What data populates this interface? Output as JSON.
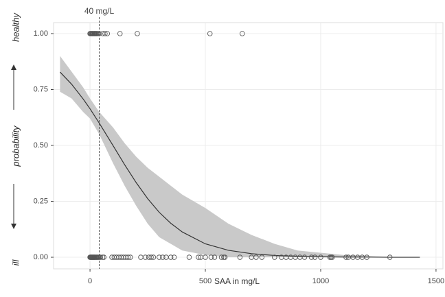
{
  "chart_data": {
    "type": "logistic",
    "x_label": "SAA in mg/L",
    "y_labels": {
      "top": "healthy",
      "middle": "probability",
      "bottom": "ill"
    },
    "threshold": {
      "value": 40,
      "label": "40 mg/L"
    },
    "xlim": [
      -158,
      1530
    ],
    "ylim": [
      -0.052,
      1.049
    ],
    "xticks": [
      0,
      500,
      1000,
      1500
    ],
    "yticks": [
      {
        "value": 0,
        "label": "0.00"
      },
      {
        "value": 0.25,
        "label": "0.25"
      },
      {
        "value": 0.5,
        "label": "0.50"
      },
      {
        "value": 0.75,
        "label": "0.75"
      },
      {
        "value": 1,
        "label": "1.00"
      }
    ],
    "grid": true,
    "fit": {
      "color": "#333333",
      "band_color": "#c9c9c9",
      "x": [
        -130,
        -80,
        -30,
        0,
        40,
        100,
        150,
        200,
        250,
        300,
        350,
        400,
        500,
        600,
        700,
        800,
        900,
        1000,
        1100,
        1200,
        1300,
        1430
      ],
      "y": [
        0.828,
        0.774,
        0.708,
        0.664,
        0.6,
        0.499,
        0.414,
        0.334,
        0.262,
        0.201,
        0.152,
        0.113,
        0.06,
        0.031,
        0.016,
        0.008,
        0.004,
        0.002,
        0.001,
        0.001,
        0,
        0
      ],
      "lower": [
        0.74,
        0.71,
        0.65,
        0.62,
        0.55,
        0.42,
        0.32,
        0.23,
        0.15,
        0.09,
        0.06,
        0.03,
        0.01,
        0,
        0,
        0,
        0,
        0,
        0,
        0,
        0,
        0
      ],
      "upper": [
        0.9,
        0.83,
        0.76,
        0.71,
        0.65,
        0.58,
        0.51,
        0.45,
        0.4,
        0.36,
        0.32,
        0.28,
        0.22,
        0.15,
        0.1,
        0.06,
        0.03,
        0.02,
        0.01,
        0.005,
        0,
        0
      ]
    },
    "groups": [
      {
        "color": "#555555",
        "x": [
          0,
          3,
          5,
          8,
          10,
          12,
          15,
          18,
          20,
          22,
          25,
          28,
          30,
          35,
          40,
          55,
          65,
          75,
          130,
          205,
          520,
          660
        ],
        "y": [
          1,
          1,
          1,
          1,
          1,
          1,
          1,
          1,
          1,
          1,
          1,
          1,
          1,
          1,
          1,
          1,
          1,
          1,
          1,
          1,
          1,
          1
        ]
      },
      {
        "color": "#555555",
        "x": [
          0,
          2,
          4,
          6,
          8,
          10,
          12,
          14,
          16,
          18,
          20,
          22,
          25,
          28,
          30,
          33,
          36,
          40,
          45,
          55,
          60,
          95,
          105,
          115,
          125,
          135,
          145,
          155,
          165,
          175,
          220,
          240,
          255,
          265,
          275,
          300,
          315,
          330,
          350,
          365,
          430,
          470,
          480,
          500,
          525,
          540,
          570,
          580,
          585,
          650,
          700,
          720,
          745,
          800,
          830,
          850,
          870,
          890,
          910,
          930,
          960,
          975,
          1000,
          1040,
          1045,
          1050,
          1110,
          1120,
          1140,
          1160,
          1180,
          1200,
          1300
        ],
        "y": [
          0,
          0,
          0,
          0,
          0,
          0,
          0,
          0,
          0,
          0,
          0,
          0,
          0,
          0,
          0,
          0,
          0,
          0,
          0,
          0,
          0,
          0,
          0,
          0,
          0,
          0,
          0,
          0,
          0,
          0,
          0,
          0,
          0,
          0,
          0,
          0,
          0,
          0,
          0,
          0,
          0,
          0,
          0,
          0,
          0,
          0,
          0,
          0,
          0,
          0,
          0,
          0,
          0,
          0,
          0,
          0,
          0,
          0,
          0,
          0,
          0,
          0,
          0,
          0,
          0,
          0,
          0,
          0,
          0,
          0,
          0,
          0,
          0
        ]
      }
    ]
  }
}
